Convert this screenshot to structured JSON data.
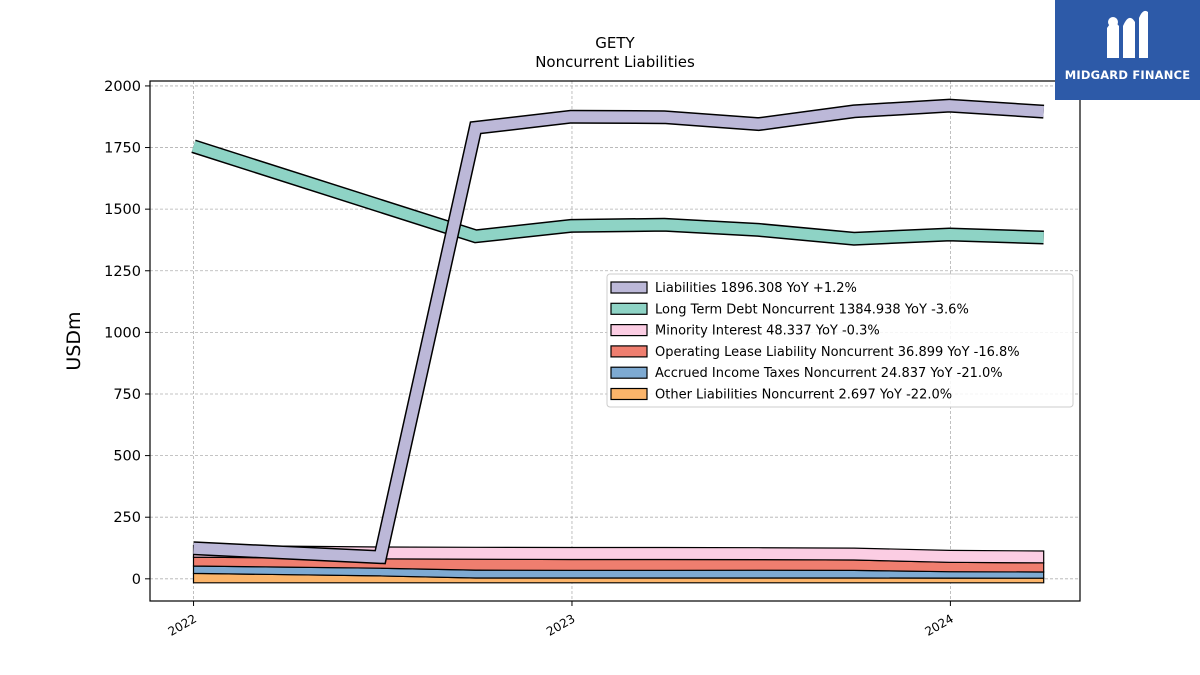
{
  "chart_data": {
    "type": "line",
    "title": "GETY",
    "subtitle": "Noncurrent  Liabilities",
    "ylabel": "USDm",
    "ylim": [
      -90,
      2020
    ],
    "yticks": [
      0,
      250,
      500,
      750,
      1000,
      1250,
      1500,
      1750,
      2000
    ],
    "xlim": [
      "2021-11-20",
      "2024-05-05"
    ],
    "xticks": [
      {
        "date": "2022-01-01",
        "label": "2022"
      },
      {
        "date": "2023-01-01",
        "label": "2023"
      },
      {
        "date": "2024-01-01",
        "label": "2024"
      }
    ],
    "grid": true,
    "legend_position": "center-right",
    "x": [
      "2022-01-01",
      "2022-06-30",
      "2022-09-30",
      "2022-12-31",
      "2023-03-31",
      "2023-06-30",
      "2023-09-30",
      "2023-12-31",
      "2024-03-31"
    ],
    "series": [
      {
        "name": "Liabilities",
        "legend": "Liabilities  1896.308 YoY +1.2%",
        "color": "#bcb8d8",
        "values": [
          124,
          null,
          1830,
          1875,
          1873,
          1845,
          1897,
          1920,
          1896
        ]
      },
      {
        "name": "Long Term Debt Noncurrent",
        "legend": "Long Term Debt Noncurrent  1384.938 YoY -3.6%",
        "color": "#8ed3c5",
        "values": [
          1755,
          null,
          1390,
          1432,
          1437,
          1416,
          1380,
          1397,
          1385
        ]
      },
      {
        "name": "Minority Interest",
        "legend": "Minority Interest  48.337 YoY -0.3%",
        "color": "#fbcde3",
        "values": [
          48,
          48,
          48.5,
          48.5,
          48.5,
          48.4,
          48.4,
          48.4,
          48.3
        ]
      },
      {
        "name": "Operating Lease Liability Noncurrent",
        "legend": "Operating Lease Liability Noncurrent  36.899 YoY -16.8%",
        "color": "#ef7e6f",
        "values": [
          36,
          38,
          44,
          44,
          44,
          43,
          42,
          38,
          36.9
        ]
      },
      {
        "name": "Accrued Income Taxes Noncurrent",
        "legend": "Accrued Income Taxes Noncurrent  24.837 YoY -21.0%",
        "color": "#7eaad2",
        "values": [
          30,
          31,
          32,
          31,
          31,
          31.4,
          31,
          26,
          24.8
        ]
      },
      {
        "name": "Other Liabilities Noncurrent",
        "legend": "Other Liabilities Noncurrent  2.697 YoY -22.0%",
        "color": "#fbb46a",
        "values": [
          22,
          12,
          3.5,
          3.5,
          3.5,
          3.4,
          3.3,
          2.9,
          2.7
        ]
      }
    ],
    "liabilities_2022Q2": 88
  },
  "branding": {
    "logo_text": "MIDGARD FINANCE"
  }
}
